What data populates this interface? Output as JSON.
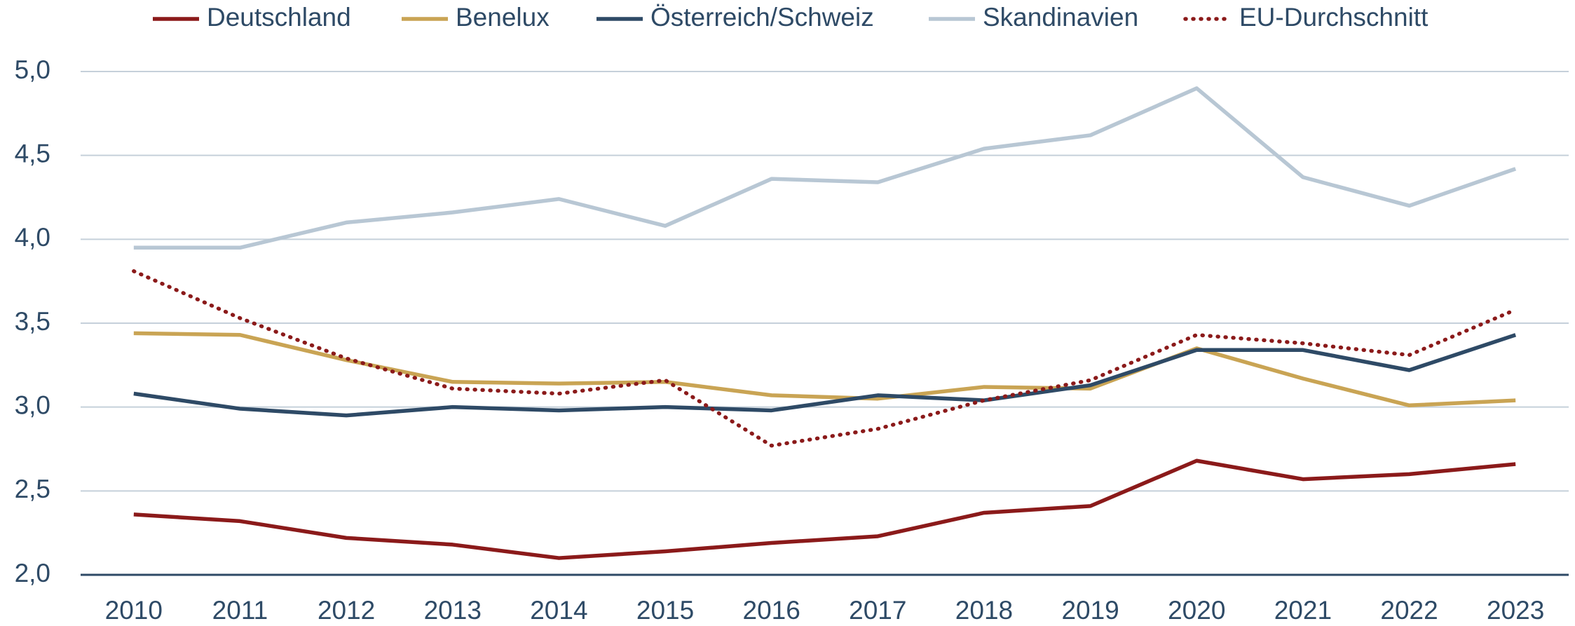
{
  "chart_data": {
    "type": "line",
    "categories": [
      "2010",
      "2011",
      "2012",
      "2013",
      "2014",
      "2015",
      "2016",
      "2017",
      "2018",
      "2019",
      "2020",
      "2021",
      "2022",
      "2023"
    ],
    "series": [
      {
        "name": "Deutschland",
        "color": "#8b1a1a",
        "values": [
          2.36,
          2.32,
          2.22,
          2.18,
          2.1,
          2.14,
          2.19,
          2.23,
          2.37,
          2.41,
          2.68,
          2.57,
          2.6,
          2.66
        ]
      },
      {
        "name": "Benelux",
        "color": "#c9a454",
        "values": [
          3.44,
          3.43,
          3.28,
          3.15,
          3.14,
          3.15,
          3.07,
          3.05,
          3.12,
          3.11,
          3.35,
          3.17,
          3.01,
          3.04
        ]
      },
      {
        "name": "Österreich/Schweiz",
        "color": "#2e4a66",
        "values": [
          3.08,
          2.99,
          2.95,
          3.0,
          2.98,
          3.0,
          2.98,
          3.07,
          3.04,
          3.13,
          3.34,
          3.34,
          3.22,
          3.43
        ]
      },
      {
        "name": "Skandinavien",
        "color": "#b8c7d4",
        "values": [
          3.95,
          3.95,
          4.1,
          4.16,
          4.24,
          4.08,
          4.36,
          4.34,
          4.54,
          4.62,
          4.9,
          4.37,
          4.2,
          4.42
        ]
      },
      {
        "name": "EU-Durchschnitt",
        "color": "#8b1a1a",
        "dash": "dotted",
        "values": [
          3.81,
          3.53,
          3.29,
          3.11,
          3.08,
          3.16,
          2.77,
          2.87,
          3.04,
          3.16,
          3.43,
          3.38,
          3.31,
          3.58
        ]
      }
    ],
    "ylim": [
      2.0,
      5.0
    ],
    "yticks": [
      {
        "value": 2.0,
        "label": "2,0"
      },
      {
        "value": 2.5,
        "label": "2,5"
      },
      {
        "value": 3.0,
        "label": "3,0"
      },
      {
        "value": 3.5,
        "label": "3,5"
      },
      {
        "value": 4.0,
        "label": "4,0"
      },
      {
        "value": 4.5,
        "label": "4,5"
      },
      {
        "value": 5.0,
        "label": "5,0"
      }
    ],
    "grid": true,
    "legend": "top"
  }
}
